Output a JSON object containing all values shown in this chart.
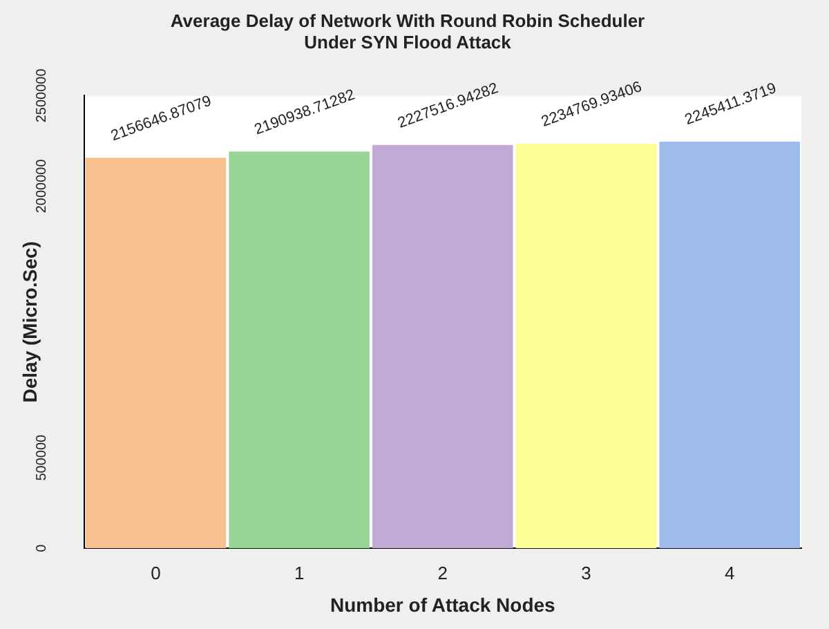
{
  "chart_data": {
    "type": "bar",
    "title": "Average Delay of Network With Round Robin Scheduler\nUnder SYN Flood Attack",
    "xlabel": "Number of Attack Nodes",
    "ylabel": "Delay (Micro.Sec)",
    "categories": [
      "0",
      "1",
      "2",
      "3",
      "4"
    ],
    "values": [
      2156646.87079,
      2190938.71282,
      2227516.94282,
      2234769.93406,
      2245411.3719
    ],
    "colors": [
      "#f9c08f",
      "#97d595",
      "#c3a9d6",
      "#fdfd96",
      "#9fbbee"
    ],
    "ylim": [
      0,
      2500000
    ],
    "yticks": [
      0,
      500000,
      2000000,
      2500000
    ],
    "data_labels": true,
    "grid": false,
    "legend": false
  }
}
